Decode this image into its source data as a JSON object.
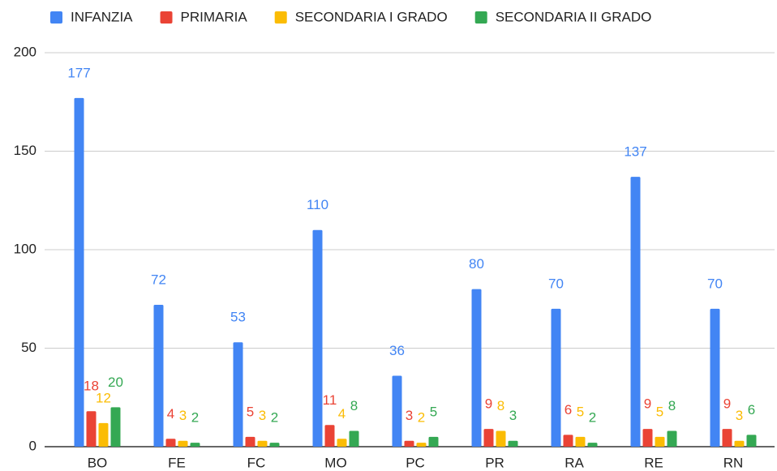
{
  "chart_data": {
    "type": "bar",
    "categories": [
      "BO",
      "FE",
      "FC",
      "MO",
      "PC",
      "PR",
      "RA",
      "RE",
      "RN"
    ],
    "series": [
      {
        "name": "INFANZIA",
        "color": "#4285f4",
        "values": [
          177,
          72,
          53,
          110,
          36,
          80,
          70,
          137,
          70
        ]
      },
      {
        "name": "PRIMARIA",
        "color": "#ea4335",
        "values": [
          18,
          4,
          5,
          11,
          3,
          9,
          6,
          9,
          9
        ]
      },
      {
        "name": "SECONDARIA I GRADO",
        "color": "#fbbc04",
        "values": [
          12,
          3,
          3,
          4,
          2,
          8,
          5,
          5,
          3
        ]
      },
      {
        "name": "SECONDARIA II GRADO",
        "color": "#34a853",
        "values": [
          20,
          2,
          2,
          8,
          5,
          3,
          2,
          8,
          6
        ]
      }
    ],
    "ylim": [
      0,
      200
    ],
    "yticks": [
      0,
      50,
      100,
      150,
      200
    ],
    "grid": true,
    "legend": "top",
    "data_labels": true
  }
}
